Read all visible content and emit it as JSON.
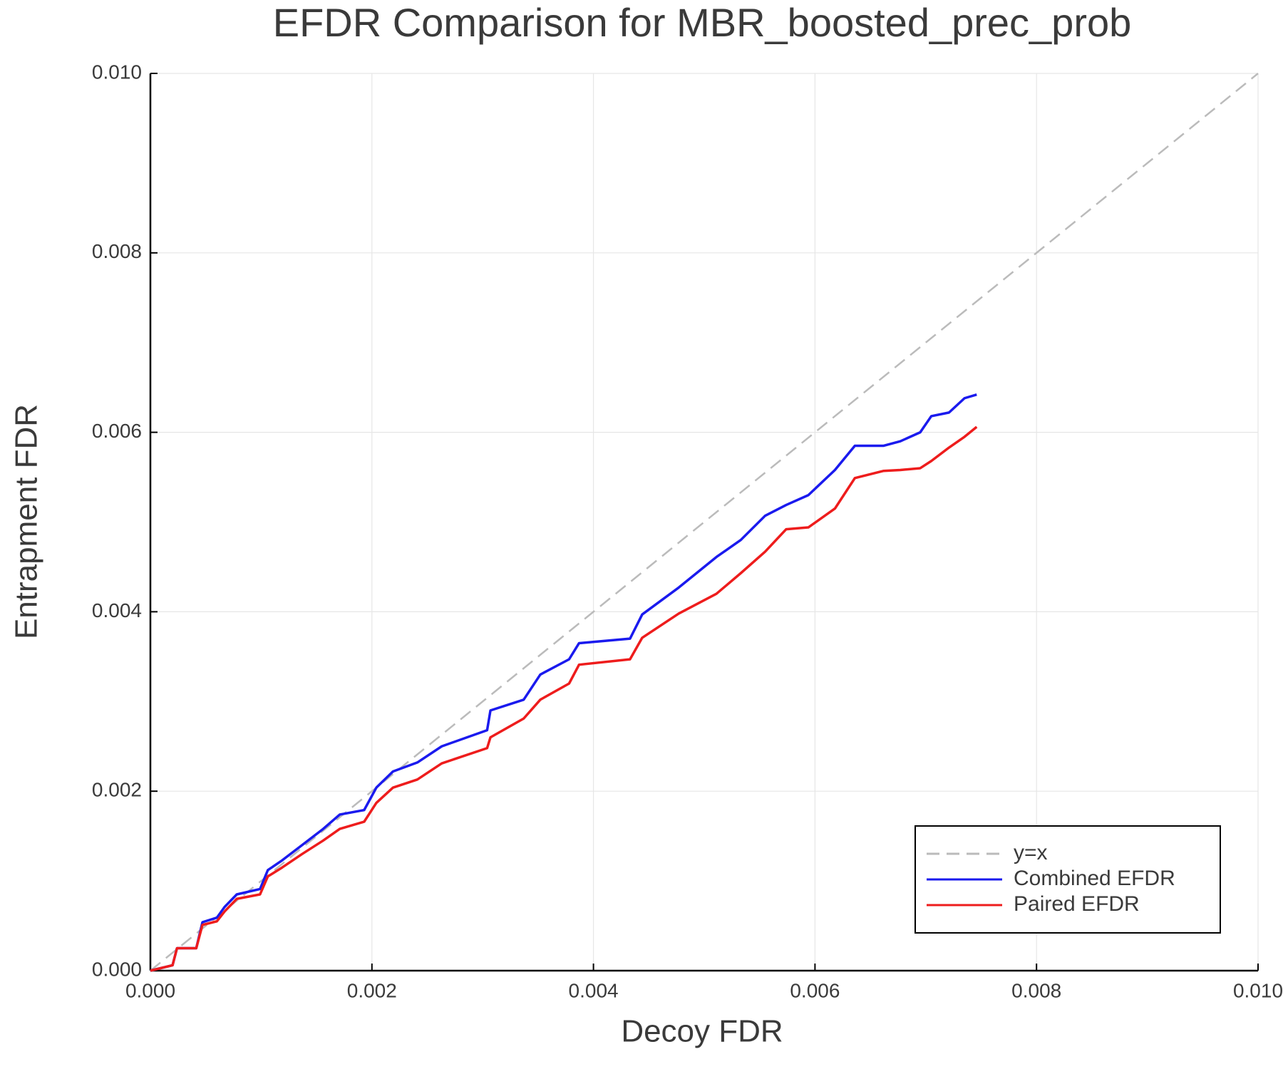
{
  "chart_data": {
    "type": "line",
    "title": "EFDR Comparison for MBR_boosted_prec_prob",
    "x_label": "Decoy FDR",
    "y_label": "Entrapment FDR",
    "xlim": [
      0,
      0.01
    ],
    "ylim": [
      0,
      0.01
    ],
    "xticks": [
      {
        "value": 0,
        "label": "0.000"
      },
      {
        "value": 0.002,
        "label": "0.002"
      },
      {
        "value": 0.004,
        "label": "0.004"
      },
      {
        "value": 0.006,
        "label": "0.006"
      },
      {
        "value": 0.008,
        "label": "0.008"
      },
      {
        "value": 0.01,
        "label": "0.010"
      }
    ],
    "yticks": [
      {
        "value": 0,
        "label": "0.000"
      },
      {
        "value": 0.002,
        "label": "0.002"
      },
      {
        "value": 0.004,
        "label": "0.004"
      },
      {
        "value": 0.006,
        "label": "0.006"
      },
      {
        "value": 0.008,
        "label": "0.008"
      },
      {
        "value": 0.01,
        "label": "0.010"
      }
    ],
    "grid": true,
    "legend": "bottom-right",
    "series": [
      {
        "name": "y=x",
        "color": "#bbbbbb",
        "dashed": true,
        "x": [
          0,
          0.01
        ],
        "values": [
          0,
          0.01
        ]
      },
      {
        "name": "Combined EFDR",
        "color": "#1a1aee",
        "x": [
          0,
          0.0002,
          0.00024,
          0.000414,
          0.00047,
          0.0006,
          0.00067,
          0.00078,
          0.00099,
          0.00106,
          0.00119,
          0.00137,
          0.00156,
          0.00171,
          0.00193,
          0.00204,
          0.00219,
          0.00241,
          0.00263,
          0.00304,
          0.00307,
          0.00337,
          0.00352,
          0.00378,
          0.00387,
          0.00433,
          0.00444,
          0.00477,
          0.00511,
          0.00533,
          0.00555,
          0.00574,
          0.00594,
          0.00618,
          0.00636,
          0.00662,
          0.00677,
          0.00695,
          0.00705,
          0.00721,
          0.00735,
          0.00746
        ],
        "values": [
          0,
          6e-05,
          0.00025,
          0.00025,
          0.00054,
          0.00059,
          0.00071,
          0.00085,
          0.00091,
          0.00112,
          0.00123,
          0.0014,
          0.00158,
          0.00174,
          0.00179,
          0.00204,
          0.00222,
          0.00232,
          0.0025,
          0.00268,
          0.0029,
          0.00302,
          0.0033,
          0.00347,
          0.00365,
          0.0037,
          0.00397,
          0.00427,
          0.00461,
          0.0048,
          0.00507,
          0.00519,
          0.0053,
          0.00558,
          0.00585,
          0.00585,
          0.0059,
          0.006,
          0.00618,
          0.00622,
          0.00638,
          0.00642
        ]
      },
      {
        "name": "Paired EFDR",
        "color": "#ee1c1c",
        "x": [
          0,
          0.0002,
          0.00024,
          0.000414,
          0.00047,
          0.0006,
          0.00067,
          0.00078,
          0.00099,
          0.00106,
          0.00119,
          0.00137,
          0.00156,
          0.00171,
          0.00193,
          0.00204,
          0.00219,
          0.00241,
          0.00263,
          0.00304,
          0.00307,
          0.00337,
          0.00352,
          0.00378,
          0.00387,
          0.00433,
          0.00444,
          0.00477,
          0.00511,
          0.00533,
          0.00555,
          0.00574,
          0.00594,
          0.00618,
          0.00636,
          0.00662,
          0.00677,
          0.00695,
          0.00705,
          0.00721,
          0.00735,
          0.00746
        ],
        "values": [
          0,
          6e-05,
          0.00025,
          0.00025,
          0.00051,
          0.00055,
          0.00066,
          0.0008,
          0.00085,
          0.00105,
          0.00115,
          0.0013,
          0.00145,
          0.00158,
          0.00166,
          0.00187,
          0.00204,
          0.00213,
          0.00231,
          0.00248,
          0.0026,
          0.00281,
          0.00302,
          0.0032,
          0.00341,
          0.00347,
          0.00371,
          0.00398,
          0.0042,
          0.00443,
          0.00467,
          0.00492,
          0.00494,
          0.00515,
          0.00549,
          0.00557,
          0.00558,
          0.0056,
          0.00568,
          0.00583,
          0.00595,
          0.00606
        ]
      }
    ]
  }
}
